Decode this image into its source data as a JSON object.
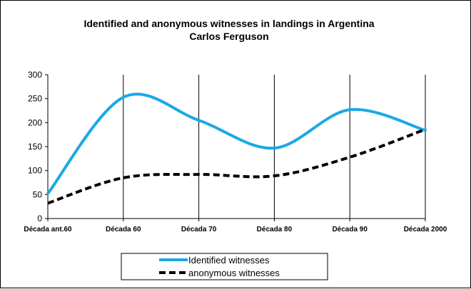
{
  "chart_data": {
    "type": "line",
    "title": "Identified and anonymous witnesses in landings in Argentina",
    "subtitle": "Carlos Ferguson",
    "categories": [
      "Década ant.60",
      "Década 60",
      "Década 70",
      "Década 80",
      "Década 90",
      "Década 2000"
    ],
    "ylim": [
      0,
      300
    ],
    "yticks": [
      0,
      50,
      100,
      150,
      200,
      250,
      300
    ],
    "grid": "vertical lines at categories",
    "legend_position": "bottom",
    "series": [
      {
        "name": "Identified witnesses",
        "values": [
          52,
          253,
          205,
          147,
          227,
          184
        ],
        "color": "#1aa8e6",
        "style": "solid"
      },
      {
        "name": "anonymous witnesses",
        "values": [
          32,
          85,
          92,
          89,
          128,
          186
        ],
        "color": "#000000",
        "style": "dashed"
      }
    ]
  }
}
